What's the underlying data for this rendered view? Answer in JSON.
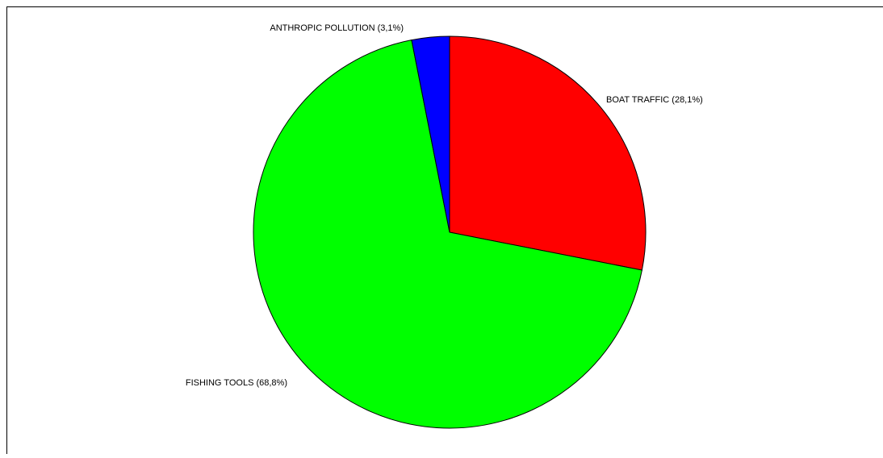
{
  "chart_data": {
    "type": "pie",
    "title": "",
    "start_angle_deg": 0,
    "direction": "clockwise",
    "slices": [
      {
        "label": "BOAT TRAFFIC (28,1%)",
        "value": 28.1,
        "color": "#ff0000",
        "label_anchor": "start"
      },
      {
        "label": "FISHING TOOLS (68,8%)",
        "value": 68.8,
        "color": "#00ff00",
        "label_anchor": "end"
      },
      {
        "label": "ANTHROPIC POLLUTION (3,1%)",
        "value": 3.1,
        "color": "#0000ff",
        "label_anchor": "end"
      }
    ],
    "legend": "none",
    "frame_color": "#000000"
  }
}
